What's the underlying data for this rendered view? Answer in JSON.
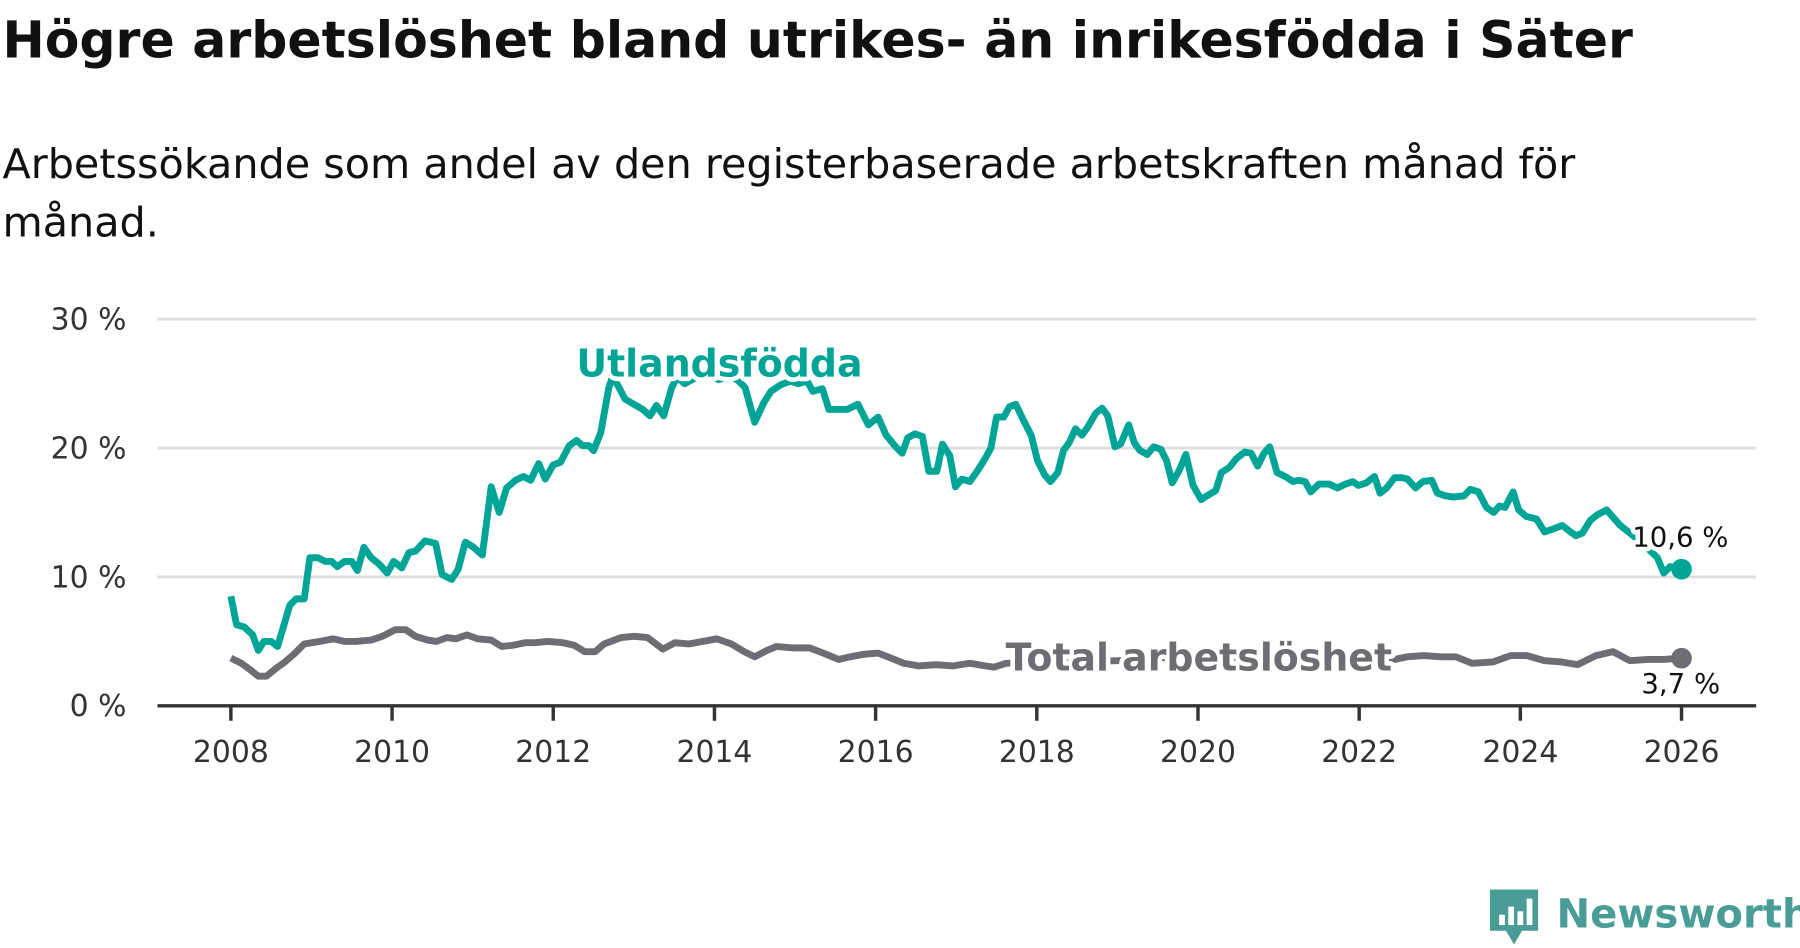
{
  "title": "Högre arbetslöshet bland utrikes- än inrikesfödda i Säter",
  "subtitle_line1": "Arbetssökande som andel av den registerbaserade arbetskraften månad för",
  "subtitle_line2": "månad.",
  "brand": "Newsworthy",
  "colors": {
    "utlandsfodda": "#00a597",
    "total": "#6e6d74",
    "grid": "#dedede",
    "axis": "#333333",
    "brand": "#4a9d96"
  },
  "chart_data": {
    "type": "line",
    "title": "Högre arbetslöshet bland utrikes- än inrikesfödda i Säter",
    "xlabel": "",
    "ylabel": "",
    "xlim": [
      2008,
      2026
    ],
    "ylim": [
      0,
      30
    ],
    "y_ticks": [
      {
        "v": 0,
        "label": "0 %"
      },
      {
        "v": 10,
        "label": "10 %"
      },
      {
        "v": 20,
        "label": "20 %"
      },
      {
        "v": 30,
        "label": "30 %"
      }
    ],
    "x_ticks": [
      {
        "v": 2008,
        "label": "2008"
      },
      {
        "v": 2010,
        "label": "2010"
      },
      {
        "v": 2012,
        "label": "2012"
      },
      {
        "v": 2014,
        "label": "2014"
      },
      {
        "v": 2016,
        "label": "2016"
      },
      {
        "v": 2018,
        "label": "2018"
      },
      {
        "v": 2020,
        "label": "2020"
      },
      {
        "v": 2022,
        "label": "2022"
      },
      {
        "v": 2024,
        "label": "2024"
      },
      {
        "v": 2026,
        "label": "2026"
      }
    ],
    "grid": true,
    "series": [
      {
        "name": "Utlandsfödda",
        "end_label": "10,6 %",
        "x": [
          2008.0,
          2008.07,
          2008.17,
          2008.27,
          2008.34,
          2008.41,
          2008.5,
          2008.58,
          2008.73,
          2008.81,
          2008.91,
          2008.98,
          2009.08,
          2009.17,
          2009.25,
          2009.32,
          2009.41,
          2009.5,
          2009.57,
          2009.65,
          2009.74,
          2009.84,
          2009.94,
          2010.02,
          2010.12,
          2010.21,
          2010.29,
          2010.41,
          2010.54,
          2010.62,
          2010.74,
          2010.82,
          2010.91,
          2011.01,
          2011.12,
          2011.23,
          2011.33,
          2011.42,
          2011.53,
          2011.63,
          2011.72,
          2011.82,
          2011.9,
          2012.0,
          2012.09,
          2012.2,
          2012.29,
          2012.36,
          2012.44,
          2012.5,
          2012.59,
          2012.69,
          2012.74,
          2012.89,
          2013.0,
          2013.11,
          2013.2,
          2013.28,
          2013.37,
          2013.47,
          2013.54,
          2013.63,
          2013.75,
          2013.9,
          2014.05,
          2014.2,
          2014.3,
          2014.38,
          2014.5,
          2014.61,
          2014.7,
          2014.82,
          2014.94,
          2015.04,
          2015.15,
          2015.22,
          2015.34,
          2015.42,
          2015.54,
          2015.65,
          2015.78,
          2015.91,
          2016.03,
          2016.13,
          2016.25,
          2016.33,
          2016.4,
          2016.49,
          2016.58,
          2016.66,
          2016.76,
          2016.83,
          2016.92,
          2016.99,
          2017.07,
          2017.17,
          2017.26,
          2017.36,
          2017.43,
          2017.5,
          2017.59,
          2017.66,
          2017.74,
          2017.83,
          2017.93,
          2018.01,
          2018.1,
          2018.17,
          2018.26,
          2018.33,
          2018.4,
          2018.48,
          2018.56,
          2018.63,
          2018.73,
          2018.81,
          2018.88,
          2018.97,
          2019.04,
          2019.14,
          2019.21,
          2019.28,
          2019.37,
          2019.45,
          2019.54,
          2019.61,
          2019.68,
          2019.77,
          2019.85,
          2019.94,
          2020.04,
          2020.14,
          2020.22,
          2020.29,
          2020.39,
          2020.48,
          2020.58,
          2020.66,
          2020.74,
          2020.82,
          2020.89,
          2020.98,
          2021.08,
          2021.18,
          2021.25,
          2021.33,
          2021.4,
          2021.5,
          2021.63,
          2021.73,
          2021.83,
          2021.92,
          2021.99,
          2022.09,
          2022.19,
          2022.26,
          2022.34,
          2022.44,
          2022.53,
          2022.6,
          2022.7,
          2022.79,
          2022.9,
          2022.97,
          2023.07,
          2023.17,
          2023.3,
          2023.38,
          2023.48,
          2023.58,
          2023.67,
          2023.74,
          2023.81,
          2023.91,
          2023.98,
          2024.07,
          2024.2,
          2024.3,
          2024.4,
          2024.52,
          2024.62,
          2024.69,
          2024.77,
          2024.87,
          2024.95,
          2025.07,
          2025.14,
          2025.24,
          2025.4,
          2025.55,
          2025.7,
          2025.78,
          2025.86,
          2026.0
        ],
        "values": [
          8.5,
          6.3,
          6.1,
          5.5,
          4.3,
          5.0,
          5.0,
          4.6,
          7.8,
          8.3,
          8.3,
          11.5,
          11.5,
          11.2,
          11.2,
          10.8,
          11.2,
          11.2,
          10.5,
          12.3,
          11.5,
          11.0,
          10.3,
          11.2,
          10.7,
          11.9,
          12.0,
          12.8,
          12.6,
          10.2,
          9.8,
          10.6,
          12.7,
          12.3,
          11.7,
          17.0,
          15.0,
          16.9,
          17.5,
          17.8,
          17.5,
          18.8,
          17.6,
          18.7,
          18.9,
          20.2,
          20.6,
          20.2,
          20.2,
          19.8,
          21.2,
          24.7,
          25.6,
          23.8,
          23.4,
          23.0,
          22.5,
          23.3,
          22.5,
          24.7,
          25.5,
          25.0,
          25.4,
          25.8,
          25.3,
          25.6,
          25.2,
          24.7,
          22.0,
          23.5,
          24.4,
          24.9,
          25.2,
          25.0,
          25.2,
          24.4,
          24.6,
          23.0,
          23.0,
          23.0,
          23.4,
          21.8,
          22.4,
          21.0,
          20.1,
          19.6,
          20.8,
          21.1,
          20.9,
          18.2,
          18.2,
          20.3,
          19.4,
          17.0,
          17.6,
          17.4,
          18.2,
          19.2,
          20.0,
          22.4,
          22.4,
          23.2,
          23.4,
          22.2,
          21.0,
          19.0,
          17.9,
          17.4,
          18.1,
          19.8,
          20.4,
          21.5,
          21.0,
          21.6,
          22.7,
          23.1,
          22.5,
          20.1,
          20.3,
          21.8,
          20.4,
          19.8,
          19.5,
          20.1,
          19.9,
          19.0,
          17.3,
          18.3,
          19.5,
          17.1,
          16.0,
          16.4,
          16.7,
          18.1,
          18.5,
          19.2,
          19.7,
          19.6,
          18.6,
          19.6,
          20.1,
          18.1,
          17.8,
          17.4,
          17.5,
          17.4,
          16.6,
          17.2,
          17.2,
          16.9,
          17.2,
          17.4,
          17.1,
          17.3,
          17.8,
          16.5,
          16.9,
          17.7,
          17.7,
          17.6,
          16.9,
          17.4,
          17.5,
          16.5,
          16.3,
          16.2,
          16.3,
          16.8,
          16.6,
          15.4,
          15.0,
          15.5,
          15.4,
          16.6,
          15.2,
          14.7,
          14.5,
          13.5,
          13.7,
          14.0,
          13.5,
          13.2,
          13.4,
          14.4,
          14.8,
          15.2,
          14.7,
          14.0,
          13.2,
          12.4,
          11.5,
          10.3,
          10.8,
          10.6
        ]
      },
      {
        "name": "Total arbetslöshet",
        "end_label": "3,7 %",
        "x": [
          2008.0,
          2008.13,
          2008.24,
          2008.34,
          2008.44,
          2008.56,
          2008.67,
          2008.78,
          2008.91,
          2009.1,
          2009.27,
          2009.41,
          2009.55,
          2009.74,
          2009.88,
          2010.04,
          2010.17,
          2010.29,
          2010.44,
          2010.55,
          2010.68,
          2010.79,
          2010.93,
          2011.06,
          2011.23,
          2011.36,
          2011.5,
          2011.65,
          2011.77,
          2011.93,
          2012.12,
          2012.26,
          2012.39,
          2012.52,
          2012.63,
          2012.84,
          2013.0,
          2013.17,
          2013.36,
          2013.51,
          2013.68,
          2013.85,
          2014.03,
          2014.21,
          2014.37,
          2014.5,
          2014.65,
          2014.77,
          2014.97,
          2015.18,
          2015.35,
          2015.54,
          2015.68,
          2015.85,
          2016.03,
          2016.19,
          2016.35,
          2016.53,
          2016.75,
          2016.96,
          2017.17,
          2017.36,
          2017.47,
          2017.62,
          2018.0,
          2019.0,
          2020.0,
          2021.0,
          2022.0,
          2022.44,
          2022.59,
          2022.8,
          2023.01,
          2023.2,
          2023.4,
          2023.66,
          2023.88,
          2024.08,
          2024.3,
          2024.51,
          2024.71,
          2024.94,
          2025.15,
          2025.36,
          2025.58,
          2025.78,
          2026.0
        ],
        "values": [
          3.7,
          3.3,
          2.8,
          2.3,
          2.3,
          2.9,
          3.4,
          4.0,
          4.8,
          5.0,
          5.2,
          5.0,
          5.0,
          5.1,
          5.4,
          5.9,
          5.9,
          5.4,
          5.1,
          5.0,
          5.3,
          5.2,
          5.5,
          5.2,
          5.1,
          4.6,
          4.7,
          4.9,
          4.9,
          5.0,
          4.9,
          4.7,
          4.2,
          4.2,
          4.8,
          5.3,
          5.4,
          5.3,
          4.4,
          4.9,
          4.8,
          5.0,
          5.2,
          4.8,
          4.2,
          3.8,
          4.3,
          4.6,
          4.5,
          4.5,
          4.1,
          3.6,
          3.8,
          4.0,
          4.1,
          3.7,
          3.3,
          3.1,
          3.2,
          3.1,
          3.3,
          3.1,
          3.0,
          3.3,
          3.4,
          3.5,
          3.9,
          3.6,
          3.4,
          3.6,
          3.8,
          3.9,
          3.8,
          3.8,
          3.3,
          3.4,
          3.9,
          3.9,
          3.5,
          3.4,
          3.2,
          3.9,
          4.2,
          3.5,
          3.6,
          3.6,
          3.7
        ]
      }
    ]
  }
}
